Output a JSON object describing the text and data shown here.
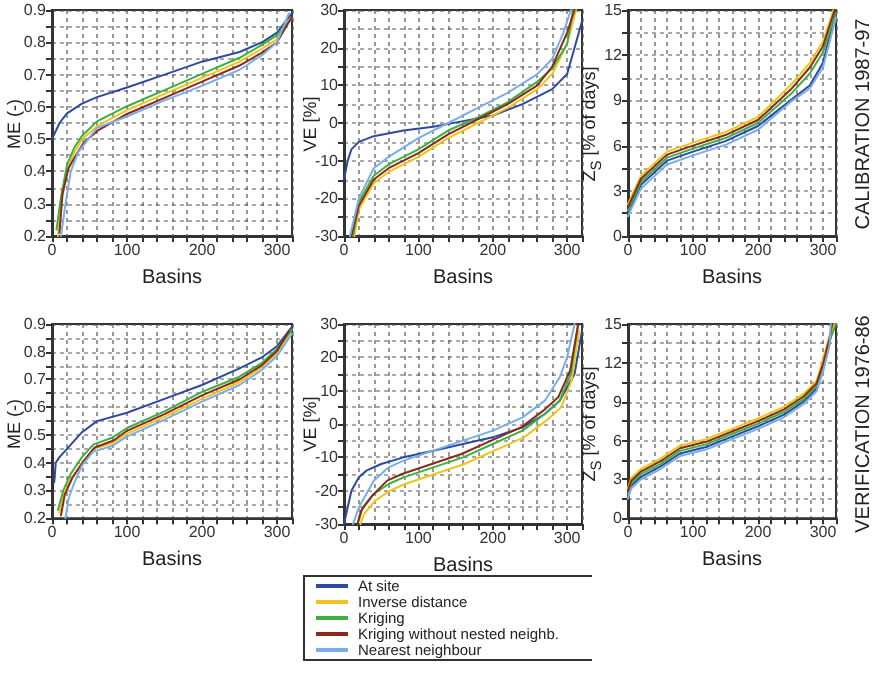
{
  "chart_data": [
    {
      "type": "line",
      "ylabel": "ME (-)",
      "xlabel": "Basins",
      "xlim": [
        0,
        320
      ],
      "xticks": [
        0,
        {
          "value": 20,
          "label": null
        },
        {
          "value": 40,
          "label": null
        },
        {
          "value": 60,
          "label": null
        },
        {
          "value": 80,
          "label": null
        },
        100,
        {
          "value": 120,
          "label": null
        },
        {
          "value": 140,
          "label": null
        },
        {
          "value": 160,
          "label": null
        },
        {
          "value": 180,
          "label": null
        },
        200,
        {
          "value": 220,
          "label": null
        },
        {
          "value": 240,
          "label": null
        },
        {
          "value": 260,
          "label": null
        },
        {
          "value": 280,
          "label": null
        },
        300,
        {
          "value": 320,
          "label": null
        }
      ],
      "ylim": [
        0.2,
        0.9
      ],
      "yticks": [
        0.2,
        {
          "value": 0.25,
          "label": null
        },
        0.3,
        {
          "value": 0.35,
          "label": null
        },
        0.4,
        {
          "value": 0.45,
          "label": null
        },
        0.5,
        {
          "value": 0.55,
          "label": null
        },
        0.6,
        {
          "value": 0.65,
          "label": null
        },
        0.7,
        {
          "value": 0.75,
          "label": null
        },
        0.8,
        {
          "value": 0.85,
          "label": null
        },
        0.9
      ],
      "grid": true,
      "line_style": "solid",
      "legend": false,
      "series": [
        {
          "color": "#2e4a9e",
          "x": [
            0,
            10,
            20,
            40,
            60,
            100,
            150,
            200,
            250,
            280,
            300,
            320
          ],
          "values": [
            0.5,
            0.55,
            0.58,
            0.61,
            0.63,
            0.66,
            0.7,
            0.74,
            0.77,
            0.8,
            0.83,
            0.89
          ]
        },
        {
          "color": "#f0c419",
          "x": [
            8,
            12,
            20,
            30,
            40,
            60,
            100,
            150,
            200,
            250,
            280,
            300,
            318
          ],
          "values": [
            0.2,
            0.3,
            0.4,
            0.46,
            0.5,
            0.54,
            0.59,
            0.64,
            0.69,
            0.74,
            0.78,
            0.81,
            0.87
          ]
        },
        {
          "color": "#3cb043",
          "x": [
            6,
            12,
            20,
            30,
            40,
            60,
            100,
            150,
            200,
            250,
            280,
            300,
            320
          ],
          "values": [
            0.22,
            0.32,
            0.42,
            0.475,
            0.51,
            0.555,
            0.602,
            0.652,
            0.702,
            0.752,
            0.792,
            0.822,
            0.875
          ]
        },
        {
          "color": "#8b2a1a",
          "x": [
            10,
            14,
            22,
            32,
            42,
            62,
            100,
            150,
            200,
            250,
            280,
            300,
            320
          ],
          "values": [
            0.21,
            0.33,
            0.41,
            0.45,
            0.488,
            0.528,
            0.578,
            0.628,
            0.678,
            0.728,
            0.768,
            0.8,
            0.88
          ]
        },
        {
          "color": "#7aaee8",
          "x": [
            12,
            18,
            25,
            35,
            45,
            60,
            100,
            150,
            200,
            250,
            280,
            300,
            316
          ],
          "values": [
            0.2,
            0.3,
            0.4,
            0.46,
            0.49,
            0.535,
            0.57,
            0.62,
            0.665,
            0.715,
            0.76,
            0.8,
            0.89
          ]
        }
      ]
    },
    {
      "type": "line",
      "ylabel": "VE [%]",
      "xlabel": "Basins",
      "xlim": [
        0,
        320
      ],
      "xticks": [
        0,
        {
          "value": 20,
          "label": null
        },
        {
          "value": 40,
          "label": null
        },
        {
          "value": 60,
          "label": null
        },
        {
          "value": 80,
          "label": null
        },
        100,
        {
          "value": 120,
          "label": null
        },
        {
          "value": 140,
          "label": null
        },
        {
          "value": 160,
          "label": null
        },
        {
          "value": 180,
          "label": null
        },
        200,
        {
          "value": 220,
          "label": null
        },
        {
          "value": 240,
          "label": null
        },
        {
          "value": 260,
          "label": null
        },
        {
          "value": 280,
          "label": null
        },
        300,
        {
          "value": 320,
          "label": null
        }
      ],
      "ylim": [
        -30,
        30
      ],
      "yticks": [
        -30,
        {
          "value": -25,
          "label": null
        },
        -20,
        {
          "value": -15,
          "label": null
        },
        -10,
        {
          "value": -5,
          "label": null
        },
        0,
        {
          "value": 5,
          "label": null
        },
        10,
        {
          "value": 15,
          "label": null
        },
        20,
        {
          "value": 25,
          "label": null
        },
        30
      ],
      "grid": true,
      "line_style": "solid",
      "legend": false,
      "series": [
        {
          "color": "#2e4a9e",
          "x": [
            0,
            5,
            10,
            20,
            40,
            80,
            120,
            160,
            200,
            240,
            280,
            300,
            310,
            320
          ],
          "values": [
            -15,
            -10,
            -7,
            -5,
            -3.5,
            -2,
            -1,
            0.5,
            2,
            5,
            9,
            13,
            20,
            27
          ]
        },
        {
          "color": "#f0c419",
          "x": [
            14,
            20,
            40,
            60,
            100,
            140,
            180,
            220,
            260,
            280,
            300,
            312
          ],
          "values": [
            -30,
            -23,
            -16,
            -13,
            -9,
            -4,
            0,
            4,
            9,
            13,
            21,
            30
          ]
        },
        {
          "color": "#3cb043",
          "x": [
            12,
            20,
            40,
            60,
            100,
            140,
            180,
            220,
            260,
            280,
            300,
            308
          ],
          "values": [
            -30,
            -21,
            -14,
            -11,
            -7,
            -2,
            1.5,
            5.5,
            11,
            14.5,
            21,
            30
          ]
        },
        {
          "color": "#8b2a1a",
          "x": [
            10,
            20,
            40,
            60,
            100,
            140,
            180,
            220,
            260,
            280,
            300,
            310
          ],
          "values": [
            -30,
            -22,
            -15,
            -12,
            -8,
            -3,
            1,
            5,
            10,
            15,
            24,
            30
          ]
        },
        {
          "color": "#7aaee8",
          "x": [
            8,
            20,
            40,
            60,
            100,
            140,
            180,
            220,
            260,
            280,
            295,
            305
          ],
          "values": [
            -30,
            -20,
            -12,
            -9,
            -4,
            0,
            4,
            8,
            13,
            17,
            24,
            30
          ]
        }
      ]
    },
    {
      "type": "line",
      "ylabel": "Z$_{S}$ [% of days]",
      "xlabel": "Basins",
      "annotations": [
        "CALIBRATION 1987-97"
      ],
      "xlim": [
        0,
        320
      ],
      "xticks": [
        0,
        {
          "value": 20,
          "label": null
        },
        {
          "value": 40,
          "label": null
        },
        {
          "value": 60,
          "label": null
        },
        {
          "value": 80,
          "label": null
        },
        100,
        {
          "value": 120,
          "label": null
        },
        {
          "value": 140,
          "label": null
        },
        {
          "value": 160,
          "label": null
        },
        {
          "value": 180,
          "label": null
        },
        200,
        {
          "value": 220,
          "label": null
        },
        {
          "value": 240,
          "label": null
        },
        {
          "value": 260,
          "label": null
        },
        {
          "value": 280,
          "label": null
        },
        300,
        {
          "value": 320,
          "label": null
        }
      ],
      "ylim": [
        0,
        15
      ],
      "yticks": [
        0,
        {
          "value": 1.5,
          "label": null
        },
        3,
        {
          "value": 4.5,
          "label": null
        },
        6,
        {
          "value": 7.5,
          "label": null
        },
        9,
        {
          "value": 10.5,
          "label": null
        },
        12,
        {
          "value": 13.5,
          "label": null
        },
        15
      ],
      "grid": true,
      "line_style": "solid",
      "legend": false,
      "series": [
        {
          "color": "#2e4a9e",
          "x": [
            0,
            5,
            20,
            60,
            100,
            150,
            200,
            250,
            280,
            300,
            320
          ],
          "values": [
            1.5,
            2,
            3.4,
            5,
            5.6,
            6.3,
            7.3,
            9,
            10,
            11.5,
            15
          ]
        },
        {
          "color": "#f0c419",
          "x": [
            0,
            5,
            20,
            60,
            100,
            150,
            200,
            250,
            280,
            300,
            316
          ],
          "values": [
            2.1,
            2.6,
            4,
            5.6,
            6.2,
            6.9,
            7.9,
            10,
            11.5,
            12.9,
            15
          ]
        },
        {
          "color": "#3cb043",
          "x": [
            0,
            5,
            20,
            60,
            100,
            150,
            200,
            250,
            280,
            300,
            320
          ],
          "values": [
            1.7,
            2.2,
            3.6,
            5.2,
            5.8,
            6.5,
            7.5,
            9.4,
            10.8,
            12.2,
            14.8
          ]
        },
        {
          "color": "#8b2a1a",
          "x": [
            0,
            5,
            20,
            60,
            100,
            150,
            200,
            250,
            280,
            300,
            318
          ],
          "values": [
            1.9,
            2.4,
            3.8,
            5.4,
            6,
            6.7,
            7.7,
            9.7,
            11.2,
            12.6,
            15
          ]
        },
        {
          "color": "#7aaee8",
          "x": [
            0,
            5,
            20,
            60,
            100,
            150,
            200,
            250,
            280,
            300,
            320
          ],
          "values": [
            1.3,
            1.8,
            3.15,
            4.75,
            5.35,
            6.05,
            7.05,
            8.9,
            9.8,
            11.2,
            14.5
          ]
        }
      ]
    },
    {
      "type": "line",
      "ylabel": "ME (-)",
      "xlabel": "Basins",
      "xlim": [
        0,
        320
      ],
      "xticks": [
        0,
        {
          "value": 20,
          "label": null
        },
        {
          "value": 40,
          "label": null
        },
        {
          "value": 60,
          "label": null
        },
        {
          "value": 80,
          "label": null
        },
        100,
        {
          "value": 120,
          "label": null
        },
        {
          "value": 140,
          "label": null
        },
        {
          "value": 160,
          "label": null
        },
        {
          "value": 180,
          "label": null
        },
        200,
        {
          "value": 220,
          "label": null
        },
        {
          "value": 240,
          "label": null
        },
        {
          "value": 260,
          "label": null
        },
        {
          "value": 280,
          "label": null
        },
        300,
        {
          "value": 320,
          "label": null
        }
      ],
      "ylim": [
        0.2,
        0.9
      ],
      "yticks": [
        0.2,
        {
          "value": 0.25,
          "label": null
        },
        0.3,
        {
          "value": 0.35,
          "label": null
        },
        0.4,
        {
          "value": 0.45,
          "label": null
        },
        0.5,
        {
          "value": 0.55,
          "label": null
        },
        0.6,
        {
          "value": 0.65,
          "label": null
        },
        0.7,
        {
          "value": 0.75,
          "label": null
        },
        0.8,
        {
          "value": 0.85,
          "label": null
        },
        0.9
      ],
      "grid": true,
      "line_style": "solid",
      "legend": false,
      "series": [
        {
          "color": "#2e4a9e",
          "x": [
            3,
            5,
            10,
            20,
            40,
            60,
            100,
            150,
            200,
            250,
            280,
            300,
            320
          ],
          "values": [
            0.33,
            0.4,
            0.42,
            0.45,
            0.51,
            0.55,
            0.58,
            0.63,
            0.68,
            0.74,
            0.78,
            0.82,
            0.89
          ]
        },
        {
          "color": "#f0c419",
          "x": [
            10,
            15,
            25,
            40,
            55,
            80,
            100,
            150,
            200,
            250,
            280,
            300,
            318
          ],
          "values": [
            0.22,
            0.28,
            0.34,
            0.4,
            0.45,
            0.47,
            0.505,
            0.565,
            0.63,
            0.69,
            0.745,
            0.795,
            0.87
          ]
        },
        {
          "color": "#3cb043",
          "x": [
            8,
            15,
            25,
            40,
            55,
            80,
            100,
            150,
            200,
            250,
            280,
            300,
            320
          ],
          "values": [
            0.23,
            0.3,
            0.36,
            0.42,
            0.465,
            0.49,
            0.525,
            0.585,
            0.655,
            0.71,
            0.76,
            0.81,
            0.88
          ]
        },
        {
          "color": "#8b2a1a",
          "x": [
            12,
            17,
            27,
            42,
            57,
            82,
            100,
            150,
            200,
            250,
            280,
            300,
            316
          ],
          "values": [
            0.21,
            0.285,
            0.345,
            0.405,
            0.455,
            0.48,
            0.515,
            0.575,
            0.643,
            0.7,
            0.752,
            0.803,
            0.875
          ]
        },
        {
          "color": "#7aaee8",
          "x": [
            18,
            22,
            30,
            40,
            55,
            80,
            100,
            150,
            200,
            250,
            280,
            300,
            320
          ],
          "values": [
            0.2,
            0.27,
            0.33,
            0.39,
            0.44,
            0.46,
            0.495,
            0.555,
            0.62,
            0.68,
            0.735,
            0.785,
            0.865
          ]
        }
      ]
    },
    {
      "type": "line",
      "ylabel": "VE [%]",
      "xlabel": "Basins",
      "xlim": [
        0,
        320
      ],
      "xticks": [
        0,
        {
          "value": 20,
          "label": null
        },
        {
          "value": 40,
          "label": null
        },
        {
          "value": 60,
          "label": null
        },
        {
          "value": 80,
          "label": null
        },
        100,
        {
          "value": 120,
          "label": null
        },
        {
          "value": 140,
          "label": null
        },
        {
          "value": 160,
          "label": null
        },
        {
          "value": 180,
          "label": null
        },
        200,
        {
          "value": 220,
          "label": null
        },
        {
          "value": 240,
          "label": null
        },
        {
          "value": 260,
          "label": null
        },
        {
          "value": 280,
          "label": null
        },
        300,
        {
          "value": 320,
          "label": null
        }
      ],
      "ylim": [
        -30,
        30
      ],
      "yticks": [
        -30,
        {
          "value": -25,
          "label": null
        },
        -20,
        {
          "value": -15,
          "label": null
        },
        -10,
        {
          "value": -5,
          "label": null
        },
        0,
        {
          "value": 5,
          "label": null
        },
        10,
        {
          "value": 15,
          "label": null
        },
        20,
        {
          "value": 25,
          "label": null
        },
        30
      ],
      "grid": true,
      "line_style": "solid",
      "legend": "bottom",
      "series": [
        {
          "name": "At site",
          "color": "#2e4a9e",
          "x": [
            0,
            5,
            10,
            20,
            30,
            50,
            80,
            120,
            160,
            200,
            240,
            270,
            290,
            310,
            320
          ],
          "values": [
            -30,
            -25,
            -20,
            -16,
            -14,
            -12,
            -10,
            -8,
            -6,
            -4,
            -1,
            3,
            7,
            15,
            28
          ]
        },
        {
          "name": "Inverse distance",
          "color": "#f0c419",
          "x": [
            22,
            27,
            42,
            62,
            82,
            122,
            162,
            202,
            242,
            272,
            292,
            306,
            316
          ],
          "values": [
            -30,
            -27,
            -23,
            -20,
            -18,
            -15,
            -12,
            -8,
            -4,
            1,
            5,
            13,
            28
          ]
        },
        {
          "name": "Kriging",
          "color": "#3cb043",
          "x": [
            20,
            25,
            40,
            60,
            80,
            120,
            160,
            200,
            240,
            270,
            290,
            305,
            314
          ],
          "values": [
            -29,
            -25,
            -21,
            -18,
            -16,
            -13,
            -10,
            -6,
            -2,
            3,
            7,
            15,
            29
          ]
        },
        {
          "name": "Kriging without nested neighb.",
          "color": "#8b2a1a",
          "x": [
            18,
            23,
            38,
            58,
            78,
            118,
            158,
            198,
            238,
            268,
            288,
            304,
            315
          ],
          "values": [
            -30,
            -26,
            -21.5,
            -17,
            -15,
            -12,
            -9,
            -5,
            -1,
            4,
            8,
            16,
            30
          ]
        },
        {
          "name": "Nearest neighbour",
          "color": "#7aaee8",
          "x": [
            12,
            20,
            40,
            60,
            80,
            120,
            160,
            200,
            240,
            270,
            290,
            300,
            310
          ],
          "values": [
            -30,
            -25,
            -17,
            -13,
            -11,
            -8,
            -5,
            -2,
            2,
            7,
            14,
            20,
            30
          ]
        }
      ]
    },
    {
      "type": "line",
      "ylabel": "Z$_{S}$ [% of days]",
      "xlabel": "Basins",
      "annotations": [
        "VERIFICATION 1976-86"
      ],
      "xlim": [
        0,
        320
      ],
      "xticks": [
        0,
        {
          "value": 20,
          "label": null
        },
        {
          "value": 40,
          "label": null
        },
        {
          "value": 60,
          "label": null
        },
        {
          "value": 80,
          "label": null
        },
        100,
        {
          "value": 120,
          "label": null
        },
        {
          "value": 140,
          "label": null
        },
        {
          "value": 160,
          "label": null
        },
        {
          "value": 180,
          "label": null
        },
        200,
        {
          "value": 220,
          "label": null
        },
        {
          "value": 240,
          "label": null
        },
        {
          "value": 260,
          "label": null
        },
        {
          "value": 280,
          "label": null
        },
        300,
        {
          "value": 320,
          "label": null
        }
      ],
      "ylim": [
        0,
        15
      ],
      "yticks": [
        0,
        {
          "value": 1.5,
          "label": null
        },
        3,
        {
          "value": 4.5,
          "label": null
        },
        6,
        {
          "value": 7.5,
          "label": null
        },
        9,
        {
          "value": 10.5,
          "label": null
        },
        12,
        {
          "value": 13.5,
          "label": null
        },
        15
      ],
      "grid": true,
      "line_style": "solid",
      "legend": false,
      "series": [
        {
          "color": "#2e4a9e",
          "x": [
            0,
            5,
            20,
            50,
            80,
            120,
            160,
            200,
            240,
            270,
            290,
            300,
            310,
            316
          ],
          "values": [
            1.7,
            2.5,
            3.2,
            4,
            5,
            5.5,
            6.3,
            7.1,
            8,
            9,
            10,
            11.5,
            13.5,
            15
          ]
        },
        {
          "color": "#f0c419",
          "x": [
            0,
            5,
            20,
            50,
            80,
            120,
            160,
            200,
            240,
            270,
            290,
            300,
            310,
            318
          ],
          "values": [
            2.3,
            3.1,
            3.8,
            4.6,
            5.6,
            6.1,
            6.9,
            7.7,
            8.6,
            9.6,
            10.6,
            12.3,
            14.1,
            15
          ]
        },
        {
          "color": "#3cb043",
          "x": [
            0,
            5,
            20,
            50,
            80,
            120,
            160,
            200,
            240,
            270,
            290,
            300,
            310,
            320
          ],
          "values": [
            1.9,
            2.7,
            3.4,
            4.2,
            5.2,
            5.7,
            6.5,
            7.3,
            8.2,
            9.2,
            10.2,
            11.7,
            13.7,
            15
          ]
        },
        {
          "color": "#8b2a1a",
          "x": [
            0,
            5,
            20,
            50,
            80,
            120,
            160,
            200,
            240,
            270,
            290,
            300,
            310,
            314
          ],
          "values": [
            2.1,
            2.9,
            3.6,
            4.4,
            5.4,
            5.9,
            6.7,
            7.5,
            8.4,
            9.4,
            10.4,
            11.9,
            13.9,
            15
          ]
        },
        {
          "color": "#7aaee8",
          "x": [
            0,
            5,
            20,
            50,
            80,
            120,
            160,
            200,
            240,
            270,
            290,
            300,
            310,
            312
          ],
          "values": [
            1.5,
            2.3,
            3,
            3.8,
            4.8,
            5.3,
            6.1,
            6.9,
            7.8,
            8.8,
            9.8,
            11.3,
            13.3,
            15
          ]
        }
      ]
    }
  ]
}
